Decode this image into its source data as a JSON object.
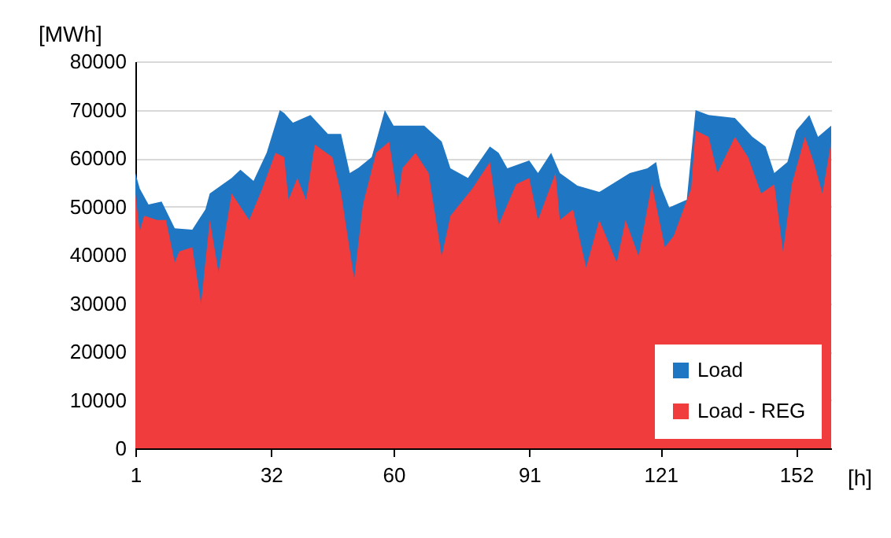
{
  "chart_data": {
    "type": "area",
    "xlabel": "[h]",
    "ylabel": "[MWh]",
    "xlim": [
      1,
      160
    ],
    "xticks": [
      1,
      32,
      60,
      91,
      121,
      152
    ],
    "ylim": [
      0,
      80000
    ],
    "yticks": [
      0,
      10000,
      20000,
      30000,
      40000,
      50000,
      60000,
      70000,
      80000
    ],
    "grid": "y",
    "legend": "bottom right",
    "series": [
      {
        "name": "Load",
        "color": "#1f77c4",
        "x": [
          1,
          2,
          4,
          7,
          10,
          14,
          17,
          18,
          23,
          25,
          28,
          31,
          34,
          35,
          37,
          41,
          45,
          48,
          50,
          52,
          55,
          56,
          58,
          60,
          64,
          67,
          71,
          73,
          77,
          82,
          84,
          86,
          91,
          93,
          96,
          98,
          102,
          107,
          114,
          118,
          120,
          121,
          123,
          127,
          129,
          132,
          138,
          142,
          145,
          147,
          150,
          152,
          155,
          157,
          160
        ],
        "values": [
          56900,
          53700,
          50400,
          51000,
          45500,
          45200,
          49400,
          52700,
          55900,
          57600,
          55300,
          61100,
          69900,
          69300,
          67300,
          68900,
          65000,
          65000,
          56900,
          58000,
          60200,
          63400,
          69900,
          66700,
          66700,
          66700,
          63400,
          57900,
          55900,
          62400,
          61100,
          57900,
          59500,
          56900,
          61100,
          56900,
          54300,
          53000,
          56900,
          57900,
          59200,
          54300,
          49800,
          51400,
          69900,
          68900,
          68300,
          64400,
          62400,
          56900,
          59200,
          65700,
          68900,
          64400,
          66700
        ]
      },
      {
        "name": "Load - REG",
        "color": "#f03c3c",
        "x": [
          1,
          2,
          3,
          6,
          8,
          10,
          11,
          14,
          16,
          18,
          20,
          23,
          27,
          30,
          33,
          35,
          36,
          38,
          40,
          42,
          46,
          48,
          51,
          53,
          56,
          59,
          61,
          62,
          65,
          68,
          71,
          73,
          78,
          82,
          84,
          88,
          91,
          93,
          97,
          98,
          101,
          104,
          107,
          111,
          113,
          116,
          119,
          122,
          124,
          128,
          129,
          132,
          134,
          138,
          141,
          144,
          147,
          149,
          151,
          154,
          156,
          158,
          160
        ],
        "values": [
          52700,
          44900,
          48100,
          47200,
          47200,
          38400,
          40700,
          41600,
          29900,
          47200,
          36400,
          52700,
          47200,
          53700,
          61100,
          60200,
          51400,
          55900,
          51400,
          62800,
          60200,
          52700,
          35100,
          50400,
          61100,
          63400,
          51400,
          57900,
          61100,
          56900,
          39700,
          48100,
          53700,
          59200,
          46200,
          54600,
          55900,
          47200,
          56900,
          47200,
          49400,
          37400,
          47200,
          38400,
          47200,
          39700,
          54600,
          41600,
          43900,
          53700,
          65700,
          64400,
          56900,
          64400,
          60200,
          52700,
          54600,
          40700,
          54600,
          64400,
          59200,
          52700,
          63400
        ]
      }
    ]
  }
}
